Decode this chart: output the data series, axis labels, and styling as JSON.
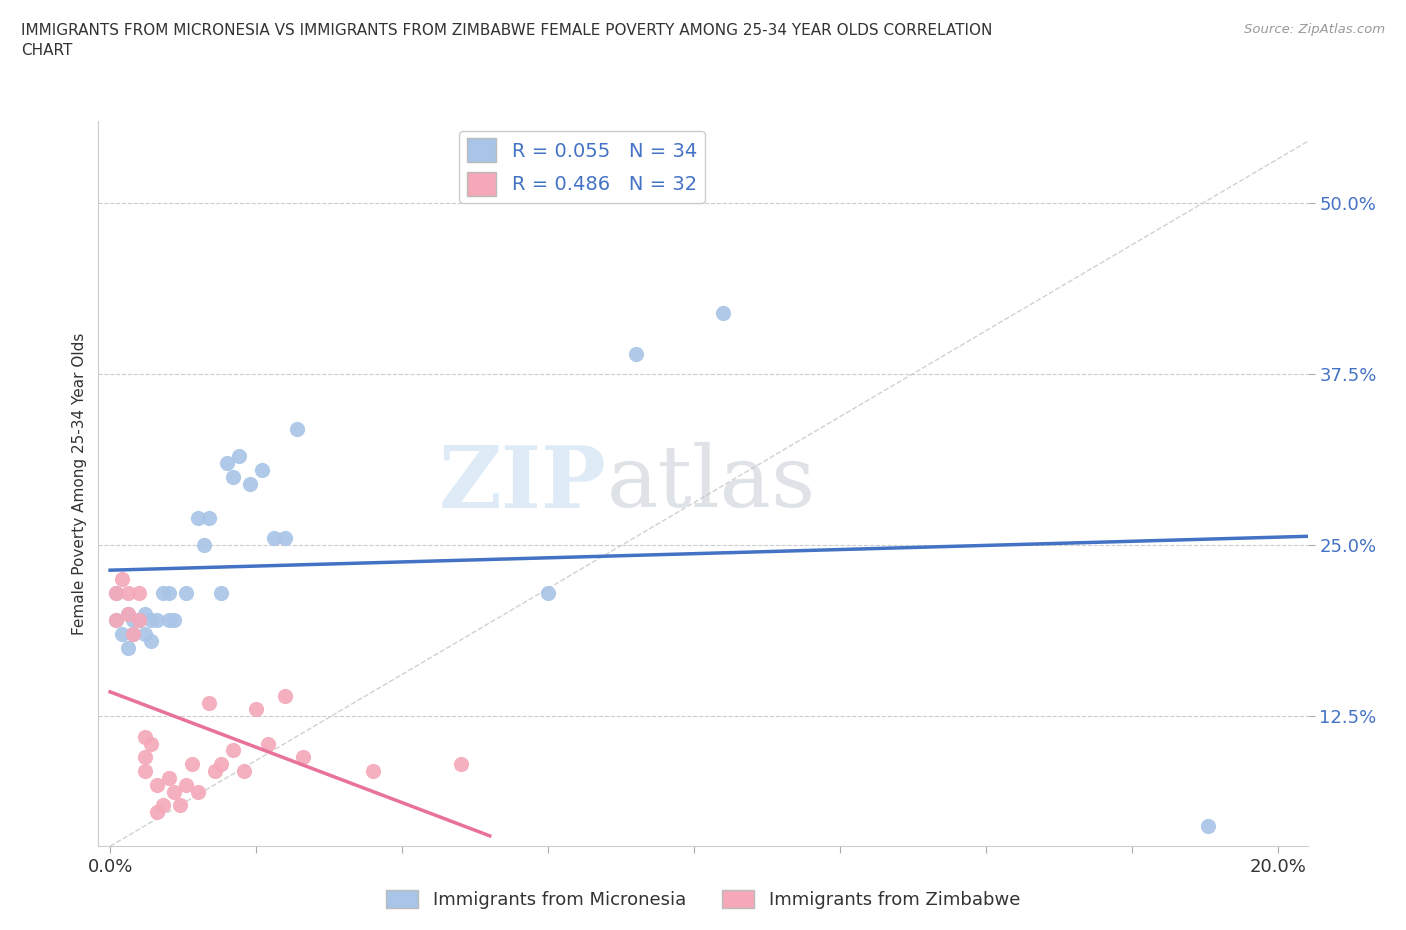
{
  "title": "IMMIGRANTS FROM MICRONESIA VS IMMIGRANTS FROM ZIMBABWE FEMALE POVERTY AMONG 25-34 YEAR OLDS CORRELATION\nCHART",
  "source": "Source: ZipAtlas.com",
  "ylabel": "Female Poverty Among 25-34 Year Olds",
  "ytick_labels": [
    "12.5%",
    "25.0%",
    "37.5%",
    "50.0%"
  ],
  "ytick_values": [
    0.125,
    0.25,
    0.375,
    0.5
  ],
  "xlim": [
    -0.002,
    0.205
  ],
  "ylim": [
    0.03,
    0.56
  ],
  "bg_color": "#ffffff",
  "grid_color": "#cccccc",
  "watermark_zip": "ZIP",
  "watermark_atlas": "atlas",
  "micronesia_R": 0.055,
  "micronesia_N": 34,
  "zimbabwe_R": 0.486,
  "zimbabwe_N": 32,
  "micronesia_color": "#a8c4e6",
  "zimbabwe_color": "#f4a8b8",
  "micronesia_line_color": "#4472c4",
  "zimbabwe_line_color": "#e8729a",
  "diagonal_color": "#cccccc",
  "micronesia_x": [
    0.001,
    0.001,
    0.002,
    0.003,
    0.003,
    0.004,
    0.004,
    0.005,
    0.006,
    0.006,
    0.007,
    0.007,
    0.008,
    0.009,
    0.01,
    0.01,
    0.011,
    0.013,
    0.015,
    0.016,
    0.017,
    0.019,
    0.02,
    0.021,
    0.022,
    0.024,
    0.026,
    0.028,
    0.03,
    0.032,
    0.075,
    0.09,
    0.105,
    0.188
  ],
  "micronesia_y": [
    0.195,
    0.215,
    0.185,
    0.2,
    0.175,
    0.195,
    0.185,
    0.195,
    0.2,
    0.185,
    0.18,
    0.195,
    0.195,
    0.215,
    0.195,
    0.215,
    0.195,
    0.215,
    0.27,
    0.25,
    0.27,
    0.215,
    0.31,
    0.3,
    0.315,
    0.295,
    0.305,
    0.255,
    0.255,
    0.335,
    0.215,
    0.39,
    0.42,
    0.045
  ],
  "zimbabwe_x": [
    0.001,
    0.001,
    0.002,
    0.003,
    0.003,
    0.004,
    0.005,
    0.005,
    0.006,
    0.006,
    0.006,
    0.007,
    0.008,
    0.008,
    0.009,
    0.01,
    0.011,
    0.012,
    0.013,
    0.014,
    0.015,
    0.017,
    0.018,
    0.019,
    0.021,
    0.023,
    0.025,
    0.027,
    0.03,
    0.033,
    0.045,
    0.06
  ],
  "zimbabwe_y": [
    0.215,
    0.195,
    0.225,
    0.2,
    0.215,
    0.185,
    0.215,
    0.195,
    0.085,
    0.095,
    0.11,
    0.105,
    0.075,
    0.055,
    0.06,
    0.08,
    0.07,
    0.06,
    0.075,
    0.09,
    0.07,
    0.135,
    0.085,
    0.09,
    0.1,
    0.085,
    0.13,
    0.105,
    0.14,
    0.095,
    0.085,
    0.09
  ]
}
